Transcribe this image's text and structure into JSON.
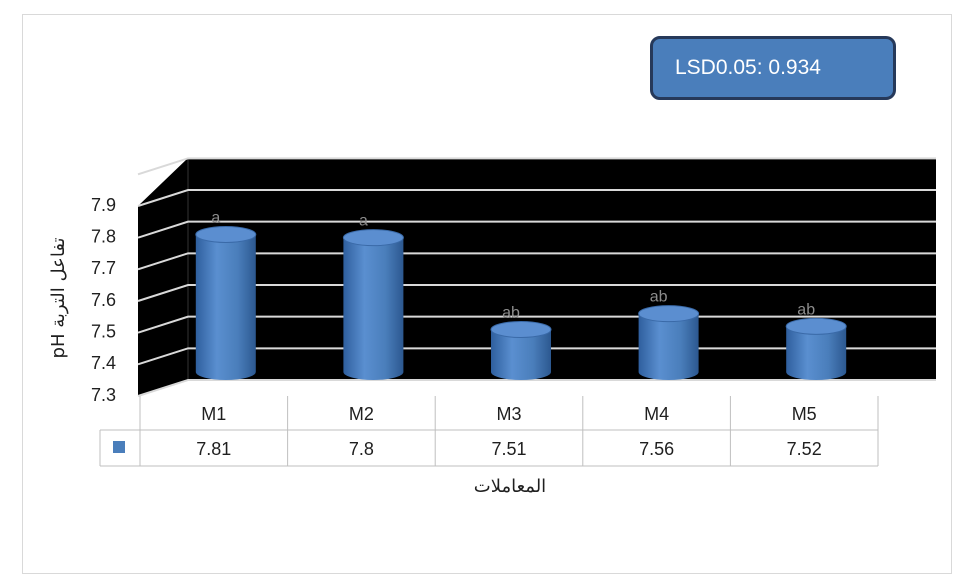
{
  "chart_data": {
    "type": "bar",
    "style": "3d-cylinder",
    "categories": [
      "M1",
      "M2",
      "M3",
      "M4",
      "M5"
    ],
    "series": [
      {
        "values": [
          7.81,
          7.8,
          7.51,
          7.56,
          7.52
        ],
        "color": "#4a7ebb"
      }
    ],
    "data_labels": [
      "7.81",
      "7.8",
      "7.51",
      "7.56",
      "7.52"
    ],
    "significance_letters": [
      "a",
      "a",
      "ab",
      "ab",
      "ab"
    ],
    "ylabel": "pH تفاعل التربة",
    "xlabel": "المعاملات",
    "ylim": [
      7.3,
      8.0
    ],
    "yticks": [
      "7.3",
      "7.4",
      "7.5",
      "7.6",
      "7.7",
      "7.8",
      "7.9"
    ],
    "grid": true,
    "data_table": true,
    "annotation": "LSD0.05: 0.934",
    "plot_background": "#000000",
    "gridline_color": "#d9d9d9"
  }
}
